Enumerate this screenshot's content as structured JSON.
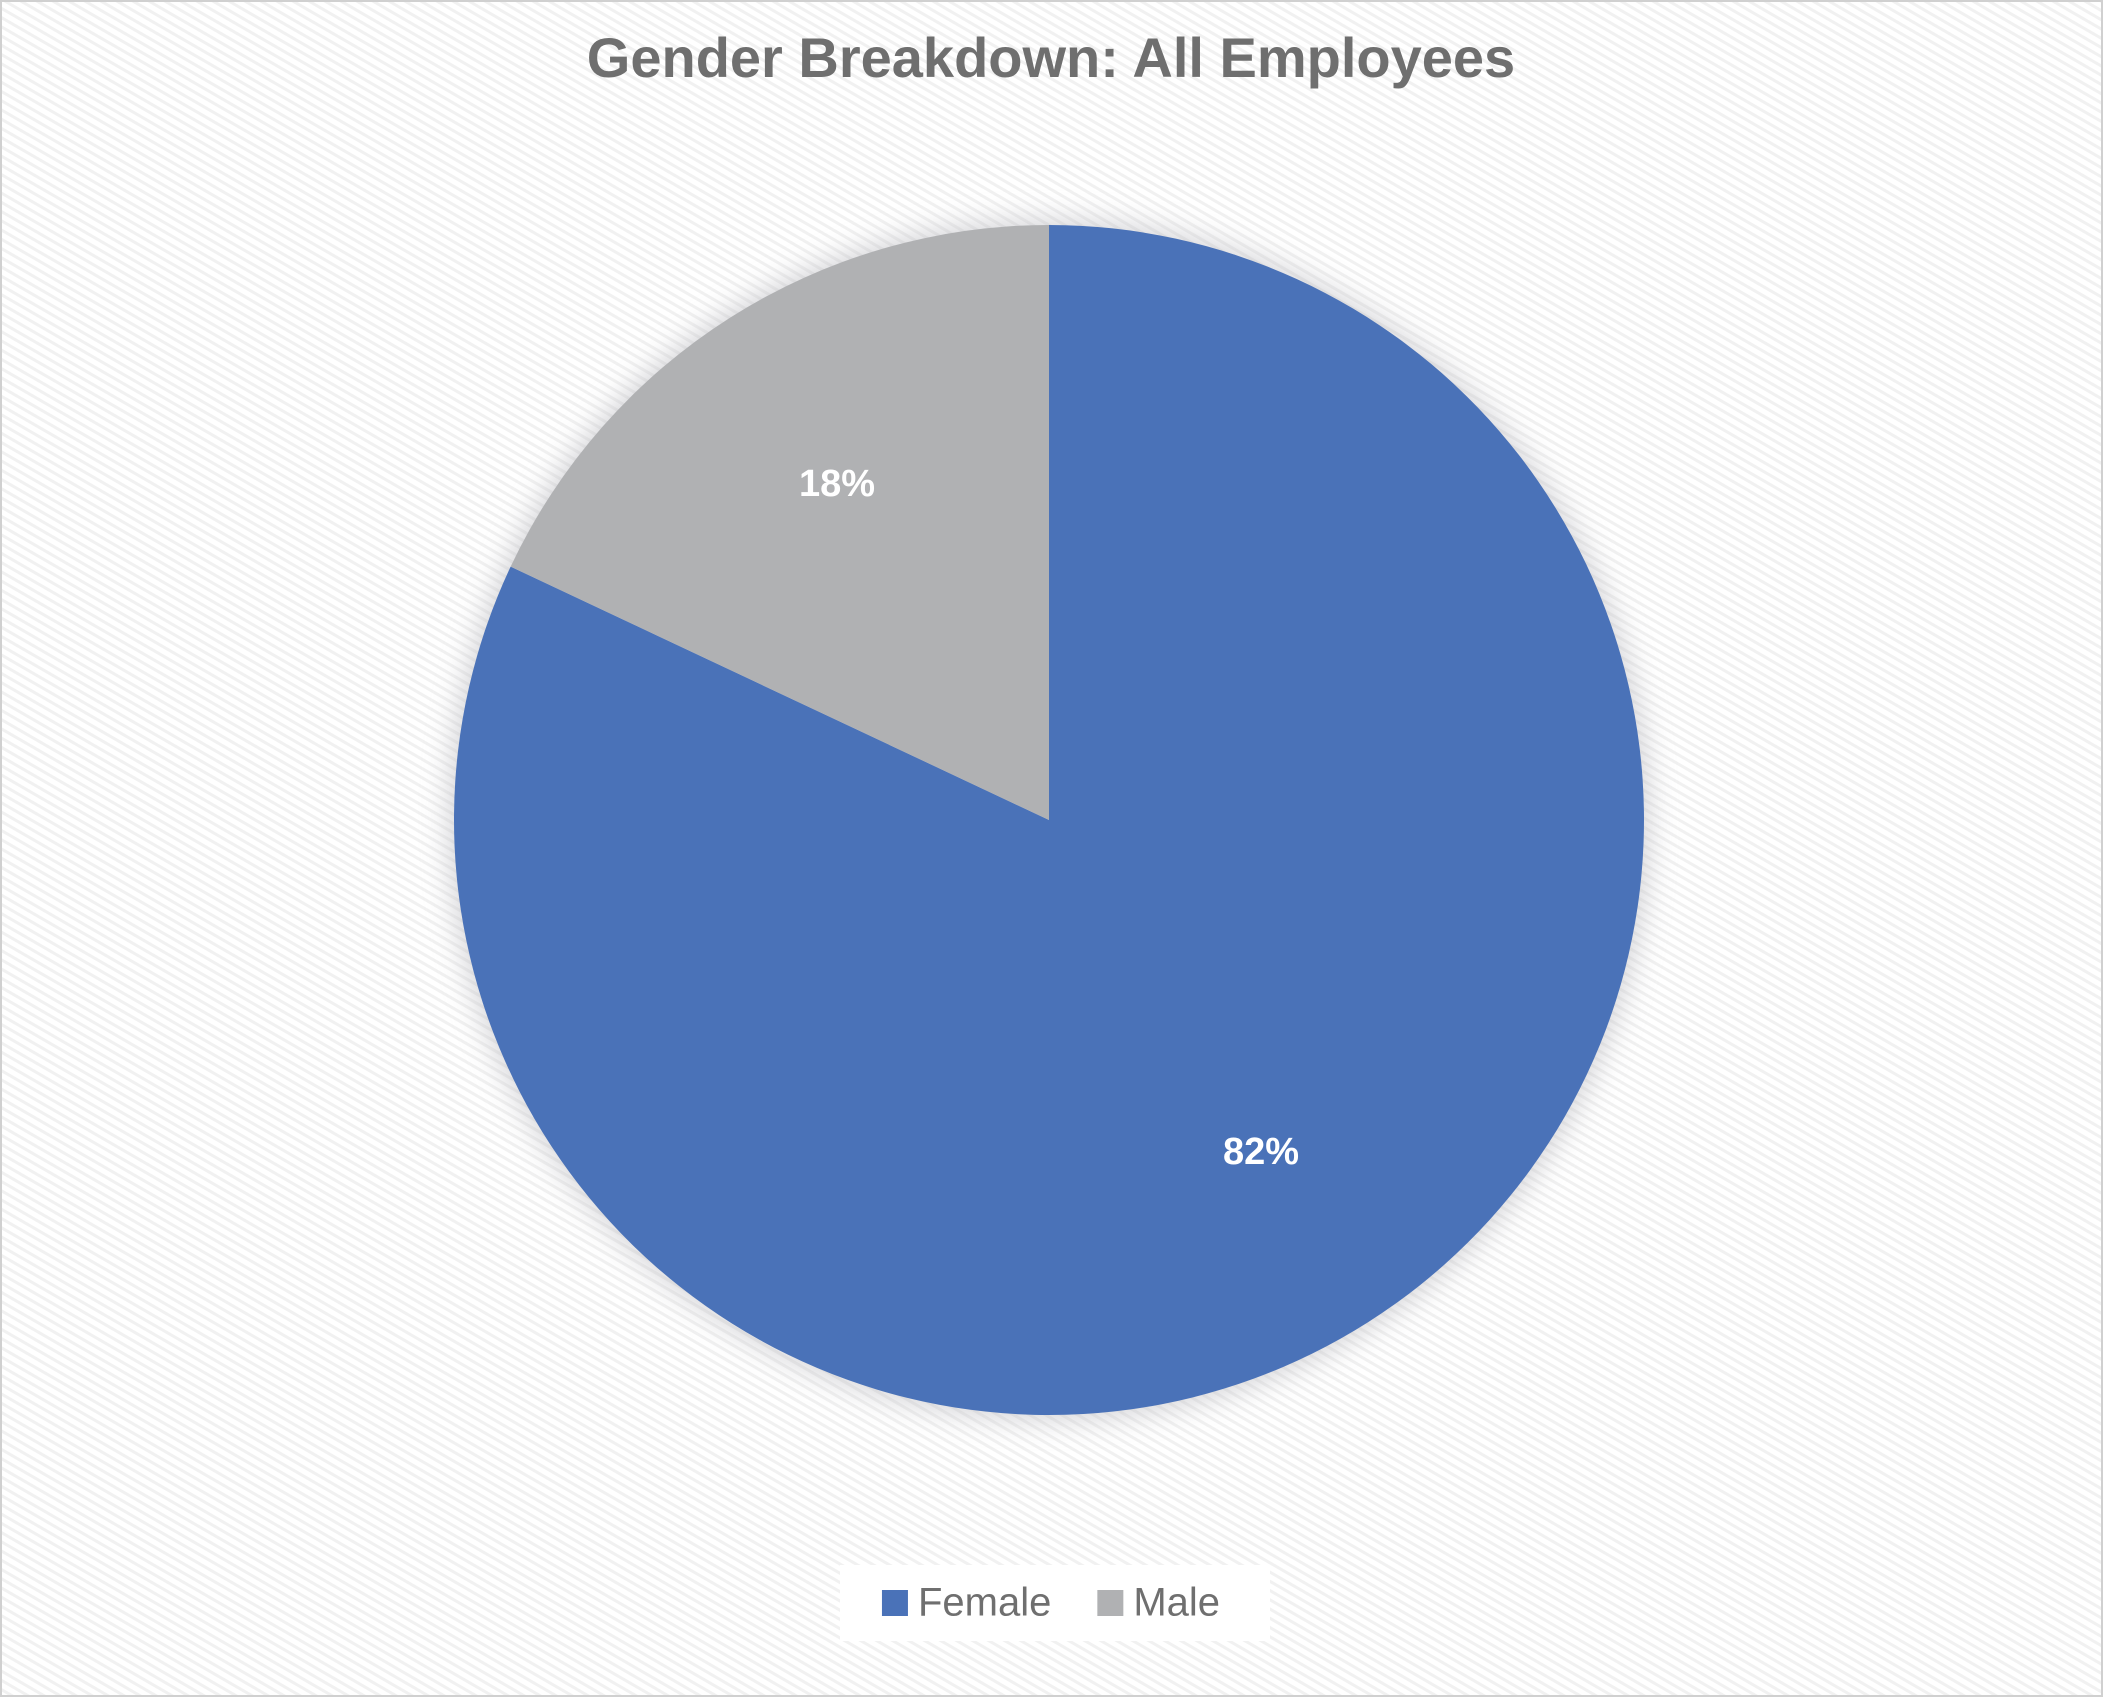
{
  "chart_data": {
    "type": "pie",
    "title": "Gender Breakdown: All Employees",
    "categories": [
      "Female",
      "Male"
    ],
    "values": [
      82,
      18
    ],
    "value_labels": [
      "82%",
      "18%"
    ],
    "colors": [
      "#4a72b8",
      "#b0b1b3"
    ],
    "legend": "bottom"
  }
}
